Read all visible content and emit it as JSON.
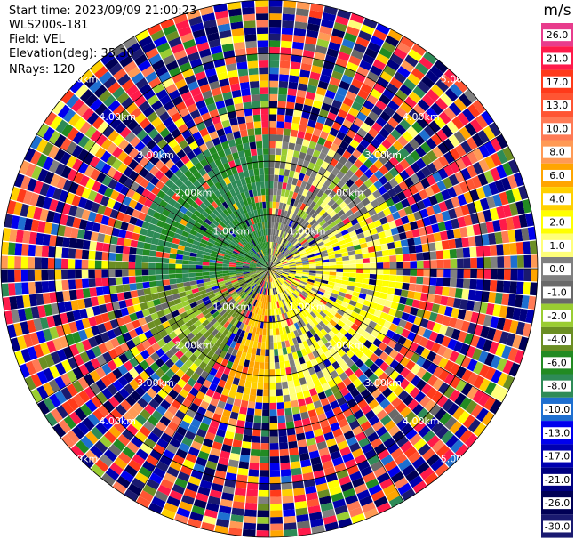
{
  "header": {
    "start_time": "Start time: 2023/09/09 21:00:23",
    "instrument": "WLS200s-181",
    "field": "Field: VEL",
    "elevation": "Elevation(deg): 35.30",
    "nrays": "NRays: 120"
  },
  "colorbar": {
    "unit": "m/s",
    "levels": [
      {
        "label": "26.0",
        "color": "#e83c8c"
      },
      {
        "label": "21.0",
        "color": "#ff1a4a"
      },
      {
        "label": "17.0",
        "color": "#ff3a1a"
      },
      {
        "label": "13.0",
        "color": "#ff5533"
      },
      {
        "label": "10.0",
        "color": "#ff7a55"
      },
      {
        "label": "8.0",
        "color": "#ff9a55"
      },
      {
        "label": "6.0",
        "color": "#ffa500"
      },
      {
        "label": "4.0",
        "color": "#ffd000"
      },
      {
        "label": "2.0",
        "color": "#ffff00"
      },
      {
        "label": "1.0",
        "color": "#ffff7a"
      },
      {
        "label": "0.0",
        "color": "#808080"
      },
      {
        "label": "-1.0",
        "color": "#696969"
      },
      {
        "label": "-2.0",
        "color": "#9acd32"
      },
      {
        "label": "-4.0",
        "color": "#6b8e23"
      },
      {
        "label": "-6.0",
        "color": "#228b22"
      },
      {
        "label": "-8.0",
        "color": "#2e8b57"
      },
      {
        "label": "-10.0",
        "color": "#1e6fd0"
      },
      {
        "label": "-13.0",
        "color": "#0000ee"
      },
      {
        "label": "-17.0",
        "color": "#0000b0"
      },
      {
        "label": "-21.0",
        "color": "#000080"
      },
      {
        "label": "-26.0",
        "color": "#000055"
      },
      {
        "label": "-30.0",
        "color": "#1a1a70"
      }
    ]
  },
  "chart_data": {
    "type": "heatmap",
    "projection": "polar (PPI)",
    "field": "VEL",
    "elevation_deg": 35.3,
    "n_rays": 120,
    "range_rings_km": [
      1.0,
      2.0,
      3.0,
      4.0,
      5.0
    ],
    "range_ring_labels": [
      "1.00km",
      "2.00km",
      "3.00km",
      "4.00km",
      "5.00km"
    ],
    "max_range_km": 5.0,
    "value_range": [
      -30.0,
      26.0
    ],
    "unit": "m/s",
    "sectors": [
      {
        "azimuth_deg": [
          -100,
          0
        ],
        "range_km": [
          0,
          2.5
        ],
        "dominant_velocity": -6.0,
        "note": "near-field green"
      },
      {
        "azimuth_deg": [
          -150,
          -100
        ],
        "range_km": [
          0,
          2.5
        ],
        "dominant_velocity": -2.0,
        "note": "light green"
      },
      {
        "azimuth_deg": [
          60,
          180
        ],
        "range_km": [
          0,
          2.5
        ],
        "dominant_velocity": 2.0,
        "note": "near-field yellow"
      },
      {
        "azimuth_deg": [
          140,
          200
        ],
        "range_km": [
          0.5,
          2.5
        ],
        "dominant_velocity": 6.0,
        "note": "orange patch"
      },
      {
        "azimuth_deg": [
          0,
          60
        ],
        "range_km": [
          0,
          2.5
        ],
        "dominant_velocity": 0.0,
        "note": "gray / mixed"
      },
      {
        "azimuth_deg": [
          0,
          360
        ],
        "range_km": [
          2.5,
          5.0
        ],
        "dominant_velocity": "mixed",
        "note": "noisy outer rings"
      }
    ]
  }
}
